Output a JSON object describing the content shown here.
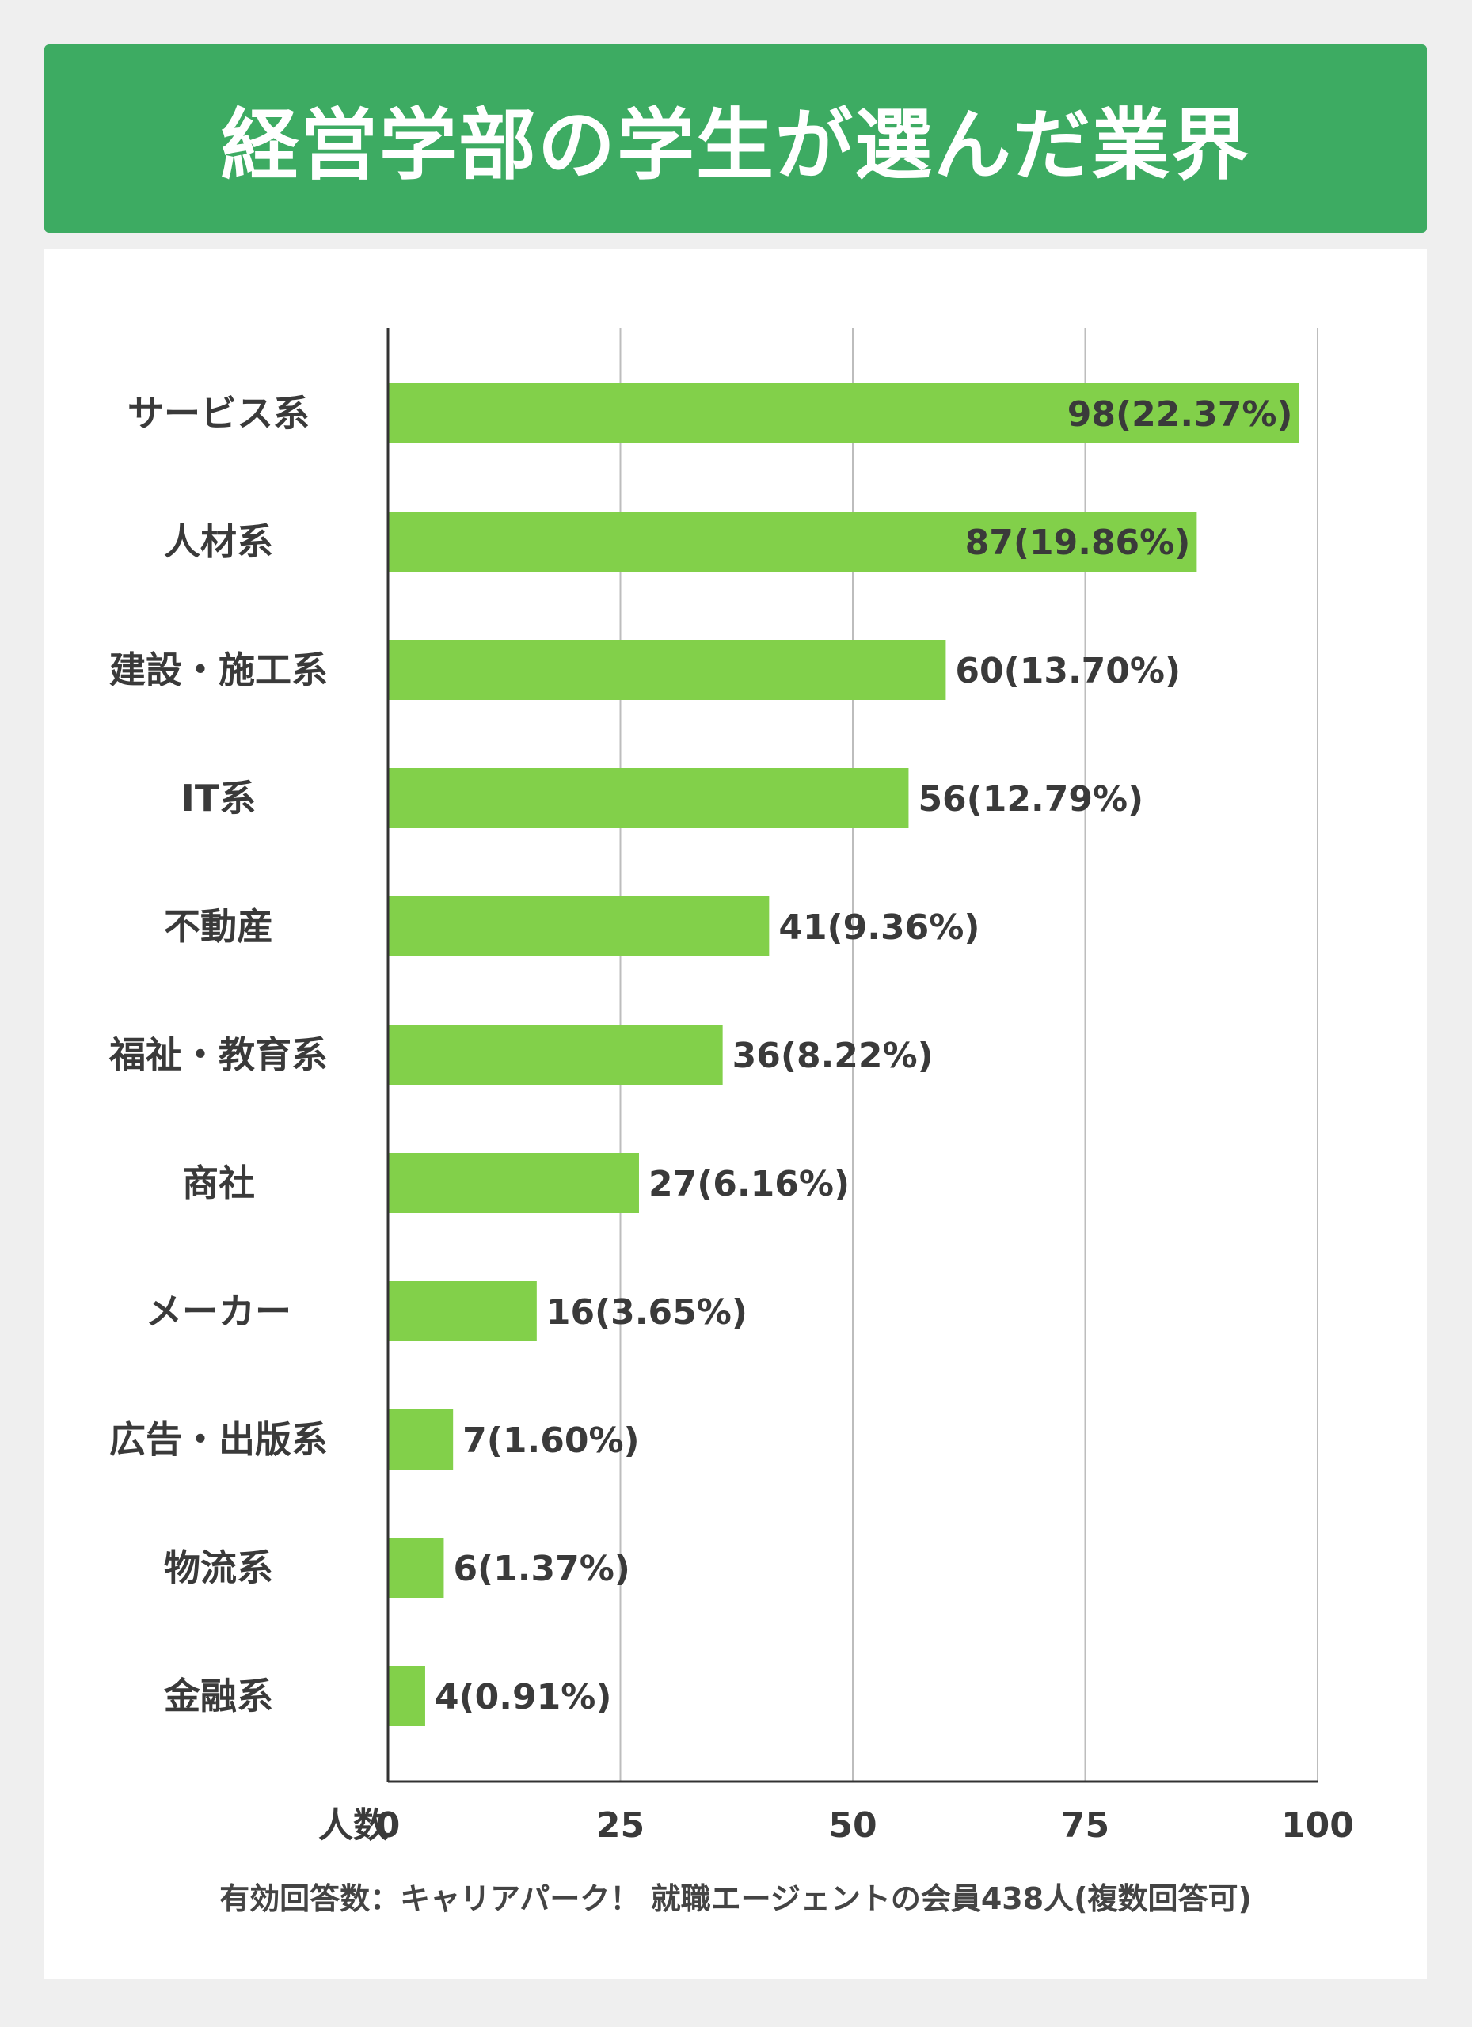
{
  "title": "経営学部の学生が選んだ業界",
  "footnote": "有効回答数：キャリアパーク！ 就職エージェントの会員438人(複数回答可)",
  "colors": {
    "header": "#3dab62",
    "bar": "#82d04a",
    "grid": "#bdbdbd",
    "axis": "#333333",
    "text": "#3a3a3a"
  },
  "chart_data": {
    "type": "bar",
    "orientation": "horizontal",
    "categories": [
      "サービス系",
      "人材系",
      "建設・施工系",
      "IT系",
      "不動産",
      "福祉・教育系",
      "商社",
      "メーカー",
      "広告・出版系",
      "物流系",
      "金融系"
    ],
    "values": [
      98,
      87,
      60,
      56,
      41,
      36,
      27,
      16,
      7,
      6,
      4
    ],
    "data_labels": [
      "98(22.37%)",
      "87(19.86%)",
      "60(13.70%)",
      "56(12.79%)",
      "41(9.36%)",
      "36(8.22%)",
      "27(6.16%)",
      "16(3.65%)",
      "7(1.60%)",
      "6(1.37%)",
      "4(0.91%)"
    ],
    "xlabel": "人数",
    "xlim": [
      0,
      100
    ],
    "xticks": [
      0,
      25,
      50,
      75,
      100
    ],
    "grid": true
  }
}
